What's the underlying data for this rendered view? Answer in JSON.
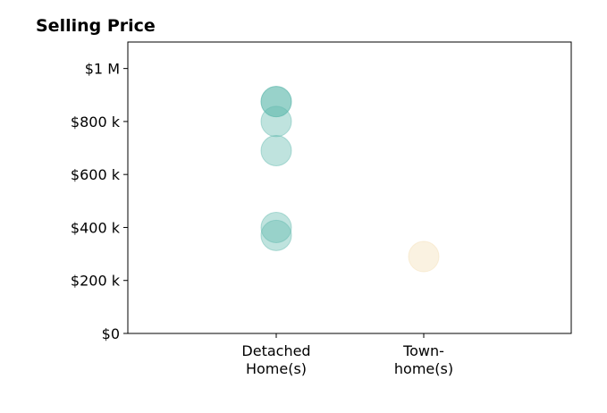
{
  "chart_data": {
    "type": "scatter",
    "title": "Selling Price",
    "xlabel": "",
    "ylabel": "",
    "categories": [
      "Detached\nHome(s)",
      "Town-\nhome(s)"
    ],
    "ylim": [
      0,
      1100000
    ],
    "yticks": [
      {
        "value": 0,
        "label": "$0"
      },
      {
        "value": 200000,
        "label": "$200 k"
      },
      {
        "value": 400000,
        "label": "$400 k"
      },
      {
        "value": 600000,
        "label": "$600 k"
      },
      {
        "value": 800000,
        "label": "$800 k"
      },
      {
        "value": 1000000,
        "label": "$1 M"
      }
    ],
    "grid": false,
    "series": [
      {
        "category_index": 0,
        "color": "#5fb8ad",
        "values": [
          875000,
          875000,
          800000,
          690000,
          400000,
          370000
        ]
      },
      {
        "category_index": 1,
        "color": "#f3deb3",
        "values": [
          290000
        ]
      }
    ]
  }
}
